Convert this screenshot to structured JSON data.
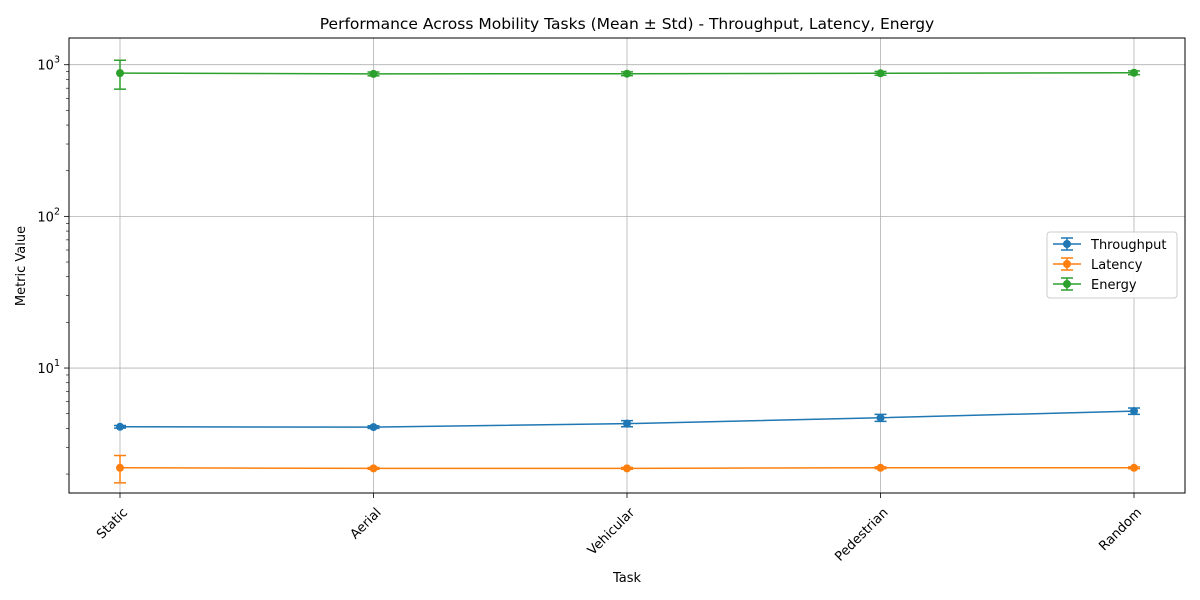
{
  "chart_data": {
    "type": "line",
    "title": "Performance Across Mobility Tasks (Mean ± Std) - Throughput, Latency, Energy",
    "xlabel": "Task",
    "ylabel": "Metric Value",
    "yscale": "log",
    "ylim": [
      1.5,
      1500
    ],
    "y_ticks": [
      {
        "value": 10,
        "base": "10",
        "exp": "1"
      },
      {
        "value": 100,
        "base": "10",
        "exp": "2"
      },
      {
        "value": 1000,
        "base": "10",
        "exp": "3"
      }
    ],
    "grid": true,
    "legend_position": "center-right",
    "categories": [
      "Static",
      "Aerial",
      "Vehicular",
      "Pedestrian",
      "Random"
    ],
    "series": [
      {
        "name": "Throughput",
        "color": "#1f77b4",
        "values": [
          4.1,
          4.08,
          4.3,
          4.7,
          5.2
        ],
        "std": [
          0.08,
          0.08,
          0.2,
          0.25,
          0.25
        ]
      },
      {
        "name": "Latency",
        "color": "#ff7f0e",
        "values": [
          2.2,
          2.18,
          2.18,
          2.2,
          2.2
        ],
        "std": [
          0.45,
          0.03,
          0.03,
          0.03,
          0.03
        ]
      },
      {
        "name": "Energy",
        "color": "#2ca02c",
        "values": [
          880,
          870,
          872,
          878,
          885
        ],
        "std": [
          190,
          25,
          25,
          25,
          25
        ]
      }
    ]
  }
}
